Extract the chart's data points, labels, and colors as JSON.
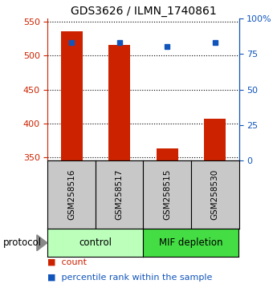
{
  "title": "GDS3626 / ILMN_1740861",
  "samples": [
    "GSM258516",
    "GSM258517",
    "GSM258515",
    "GSM258530"
  ],
  "counts": [
    536,
    516,
    363,
    407
  ],
  "percentiles": [
    83,
    83,
    80,
    83
  ],
  "ylim_left": [
    345,
    555
  ],
  "yticks_left": [
    350,
    400,
    450,
    500,
    550
  ],
  "ylim_right": [
    0,
    100
  ],
  "yticks_right": [
    0,
    25,
    50,
    75,
    100
  ],
  "right_yticklabels": [
    "0",
    "25",
    "50",
    "75",
    "100%"
  ],
  "bar_color": "#cc2200",
  "dot_color": "#1155bb",
  "bar_width": 0.45,
  "group_control_label": "control",
  "group_mif_label": "MIF depletion",
  "group_control_color": "#bbffbb",
  "group_mif_color": "#44dd44",
  "protocol_label": "protocol",
  "legend_count_label": "count",
  "legend_pct_label": "percentile rank within the sample",
  "ytick_color_left": "#cc2200",
  "ytick_color_right": "#1155bb",
  "sample_box_color": "#c8c8c8",
  "dot_size": 5
}
